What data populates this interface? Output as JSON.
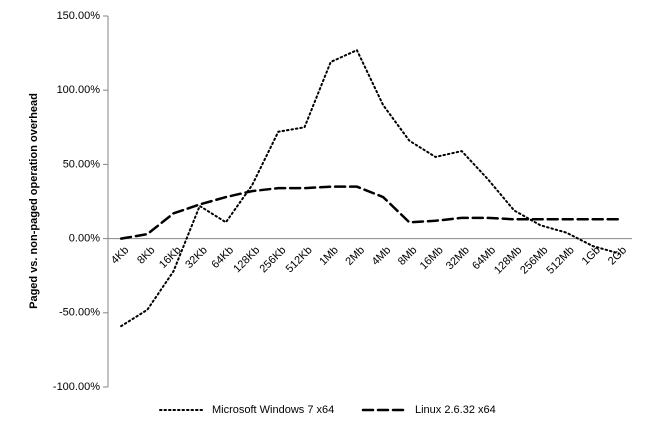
{
  "chart_data": {
    "type": "line",
    "y_label": "Paged vs. non-paged operation overhead",
    "categories": [
      "4Kb",
      "8Kb",
      "16Kb",
      "32Kb",
      "64Kb",
      "128Kb",
      "256Kb",
      "512Kb",
      "1Mb",
      "2Mb",
      "4Mb",
      "8Mb",
      "16Mb",
      "32Mb",
      "64Mb",
      "128Mb",
      "256Mb",
      "512Mb",
      "1Gb",
      "2Gb"
    ],
    "series": [
      {
        "name": "Microsoft Windows 7 x64",
        "color": "#000000",
        "dash": "dotted",
        "values": [
          -59,
          -48,
          -22,
          22,
          11,
          36,
          72,
          75,
          119,
          127,
          90,
          66,
          55,
          59,
          40,
          19,
          9,
          4,
          -5,
          -10
        ]
      },
      {
        "name": "Linux 2.6.32 x64",
        "color": "#000000",
        "dash": "dashed",
        "values": [
          0,
          3,
          17,
          23,
          28,
          32,
          34,
          34,
          35,
          35,
          28,
          11,
          12,
          14,
          14,
          13,
          13,
          13,
          13,
          13
        ]
      }
    ],
    "ylim": [
      -100,
      150
    ],
    "yticks": [
      {
        "value": -100,
        "label": "-100.00%"
      },
      {
        "value": -50,
        "label": "-50.00%"
      },
      {
        "value": 0,
        "label": "0.00%"
      },
      {
        "value": 50,
        "label": "50.00%"
      },
      {
        "value": 100,
        "label": "100.00%"
      },
      {
        "value": 150,
        "label": "150.00%"
      }
    ],
    "grid": false,
    "legend": "bottom"
  }
}
